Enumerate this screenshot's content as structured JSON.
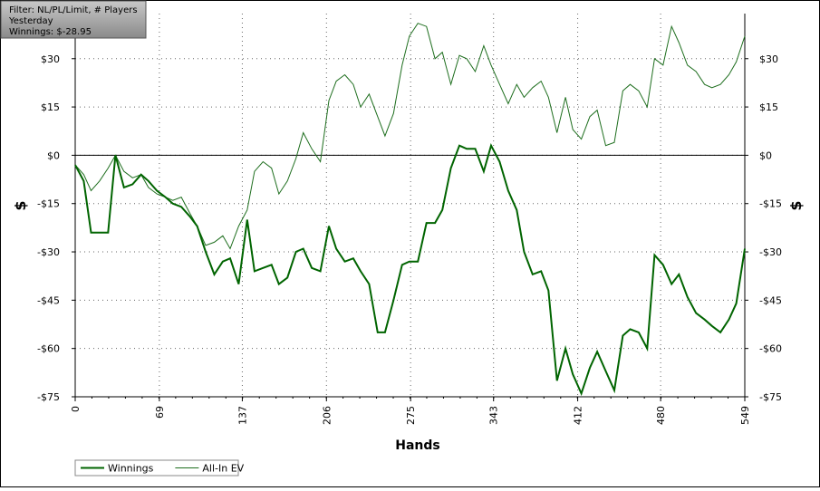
{
  "chart_data": {
    "type": "line",
    "annotations": [
      "Filter: NL/PL/Limit, # Players",
      "Yesterday",
      "Winnings: $-28.95"
    ],
    "x_label": "Hands",
    "y_label": "$",
    "x": [
      0,
      7,
      13,
      20,
      27,
      33,
      40,
      47,
      54,
      60,
      67,
      74,
      80,
      87,
      94,
      100,
      107,
      114,
      121,
      127,
      134,
      141,
      147,
      154,
      161,
      167,
      174,
      181,
      187,
      194,
      201,
      208,
      214,
      221,
      228,
      234,
      241,
      248,
      254,
      261,
      268,
      274,
      281,
      288,
      295,
      301,
      308,
      315,
      321,
      328,
      335,
      341,
      348,
      355,
      362,
      368,
      375,
      382,
      388,
      395,
      402,
      408,
      415,
      422,
      428,
      435,
      442,
      449,
      455,
      462,
      469,
      475,
      482,
      489,
      495,
      502,
      509,
      516,
      522,
      529,
      536,
      542,
      549
    ],
    "series": [
      {
        "name": "Winnings",
        "color": "#006400",
        "width": 2,
        "values": [
          -3,
          -8,
          -24,
          -24,
          -24,
          0,
          -10,
          -9,
          -6,
          -8,
          -11,
          -13,
          -15,
          -16,
          -19,
          -22,
          -30,
          -37,
          -33,
          -32,
          -40,
          -20,
          -36,
          -35,
          -34,
          -40,
          -38,
          -30,
          -29,
          -35,
          -36,
          -22,
          -29,
          -33,
          -32,
          -36,
          -40,
          -55,
          -55,
          -45,
          -34,
          -33,
          -33,
          -21,
          -21,
          -17,
          -4,
          3,
          2,
          2,
          -5,
          3,
          -2,
          -11,
          -17,
          -30,
          -37,
          -36,
          -42,
          -70,
          -60,
          -68,
          -74,
          -66,
          -61,
          -67,
          -73,
          -56,
          -54,
          -55,
          -60,
          -31,
          -34,
          -40,
          -37,
          -44,
          -49,
          -51,
          -53,
          -55,
          -51,
          -46,
          -29
        ]
      },
      {
        "name": "All-In EV",
        "color": "#1e6e1e",
        "width": 1,
        "values": [
          -3,
          -6,
          -11,
          -8,
          -4,
          0,
          -5,
          -7,
          -6,
          -10,
          -12,
          -13,
          -14,
          -13,
          -18,
          -22,
          -28,
          -27,
          -25,
          -29,
          -22,
          -17,
          -5,
          -2,
          -4,
          -12,
          -8,
          -1,
          7,
          2,
          -2,
          17,
          23,
          25,
          22,
          15,
          19,
          12,
          6,
          13,
          28,
          37,
          41,
          40,
          30,
          32,
          22,
          31,
          30,
          26,
          34,
          28,
          22,
          16,
          22,
          18,
          21,
          23,
          18,
          7,
          18,
          8,
          5,
          12,
          14,
          3,
          4,
          20,
          22,
          20,
          15,
          30,
          28,
          40,
          35,
          28,
          26,
          22,
          21,
          22,
          25,
          29,
          37
        ]
      }
    ],
    "xlim": [
      0,
      549
    ],
    "xticks": [
      0,
      69,
      137,
      206,
      275,
      343,
      412,
      480,
      549
    ],
    "ylim": [
      -75,
      44
    ],
    "yticks": [
      {
        "value": 30,
        "label": "$30"
      },
      {
        "value": 15,
        "label": "$15"
      },
      {
        "value": 0,
        "label": "$0"
      },
      {
        "value": -15,
        "label": "-$15"
      },
      {
        "value": -30,
        "label": "-$30"
      },
      {
        "value": -45,
        "label": "-$45"
      },
      {
        "value": -60,
        "label": "-$60"
      },
      {
        "value": -75,
        "label": "-$75"
      }
    ],
    "grid": true,
    "legend": "bottom-left"
  }
}
